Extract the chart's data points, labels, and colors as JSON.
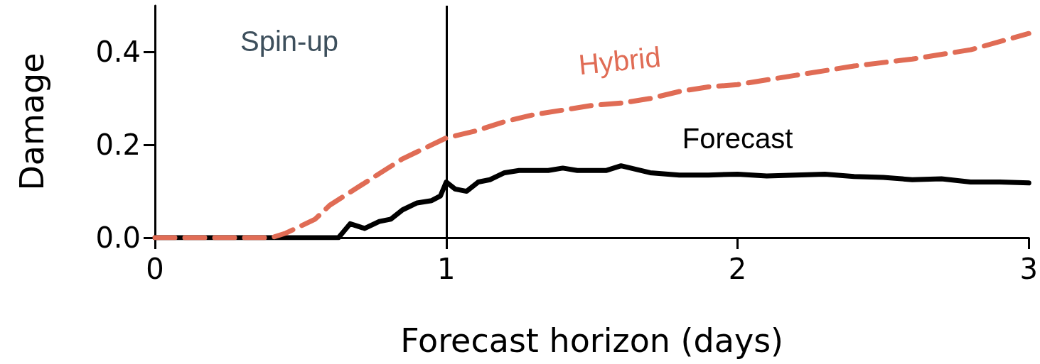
{
  "chart_data": {
    "type": "line",
    "xlabel": "Forecast horizon (days)",
    "ylabel": "Damage",
    "annotations": [
      "Spin-up"
    ],
    "series": [
      {
        "name": "Hybrid",
        "color": "#e06c55",
        "line_style": "dashed",
        "x": [
          0,
          0.1,
          0.2,
          0.3,
          0.4,
          0.45,
          0.5,
          0.55,
          0.6,
          0.65,
          0.7,
          0.75,
          0.8,
          0.85,
          0.9,
          0.95,
          1.0,
          1.1,
          1.2,
          1.3,
          1.4,
          1.5,
          1.6,
          1.7,
          1.8,
          1.9,
          2.0,
          2.2,
          2.4,
          2.6,
          2.8,
          3.0
        ],
        "values": [
          0,
          0,
          0,
          0,
          0,
          0.01,
          0.025,
          0.04,
          0.07,
          0.09,
          0.11,
          0.13,
          0.15,
          0.17,
          0.185,
          0.2,
          0.215,
          0.23,
          0.25,
          0.265,
          0.275,
          0.285,
          0.29,
          0.3,
          0.315,
          0.325,
          0.33,
          0.35,
          0.37,
          0.385,
          0.405,
          0.44
        ]
      },
      {
        "name": "Forecast",
        "color": "#000000",
        "line_style": "solid",
        "x": [
          0,
          0.2,
          0.4,
          0.63,
          0.67,
          0.72,
          0.77,
          0.81,
          0.85,
          0.9,
          0.95,
          0.98,
          1.0,
          1.03,
          1.07,
          1.11,
          1.15,
          1.2,
          1.25,
          1.3,
          1.35,
          1.4,
          1.45,
          1.5,
          1.55,
          1.6,
          1.7,
          1.8,
          1.9,
          2.0,
          2.1,
          2.2,
          2.3,
          2.4,
          2.5,
          2.6,
          2.7,
          2.8,
          2.9,
          3.0
        ],
        "values": [
          0,
          0,
          0,
          0,
          0.03,
          0.02,
          0.035,
          0.04,
          0.06,
          0.075,
          0.08,
          0.09,
          0.12,
          0.105,
          0.1,
          0.12,
          0.125,
          0.14,
          0.145,
          0.145,
          0.145,
          0.15,
          0.145,
          0.145,
          0.145,
          0.155,
          0.14,
          0.135,
          0.135,
          0.137,
          0.133,
          0.135,
          0.137,
          0.132,
          0.13,
          0.125,
          0.127,
          0.12,
          0.12,
          0.118
        ]
      }
    ],
    "xlim": [
      0,
      3
    ],
    "xticks": [
      0,
      1,
      2,
      3
    ],
    "ylim": [
      0,
      0.5
    ],
    "yticks": [
      {
        "value": 0,
        "label": "0.0"
      },
      {
        "value": 0.2,
        "label": "0.2"
      },
      {
        "value": 0.4,
        "label": "0.4"
      }
    ],
    "ref_lines": [
      {
        "axis": "x",
        "value": 1,
        "label": null,
        "color": "#000000"
      }
    ],
    "grid": false,
    "legend": false
  }
}
